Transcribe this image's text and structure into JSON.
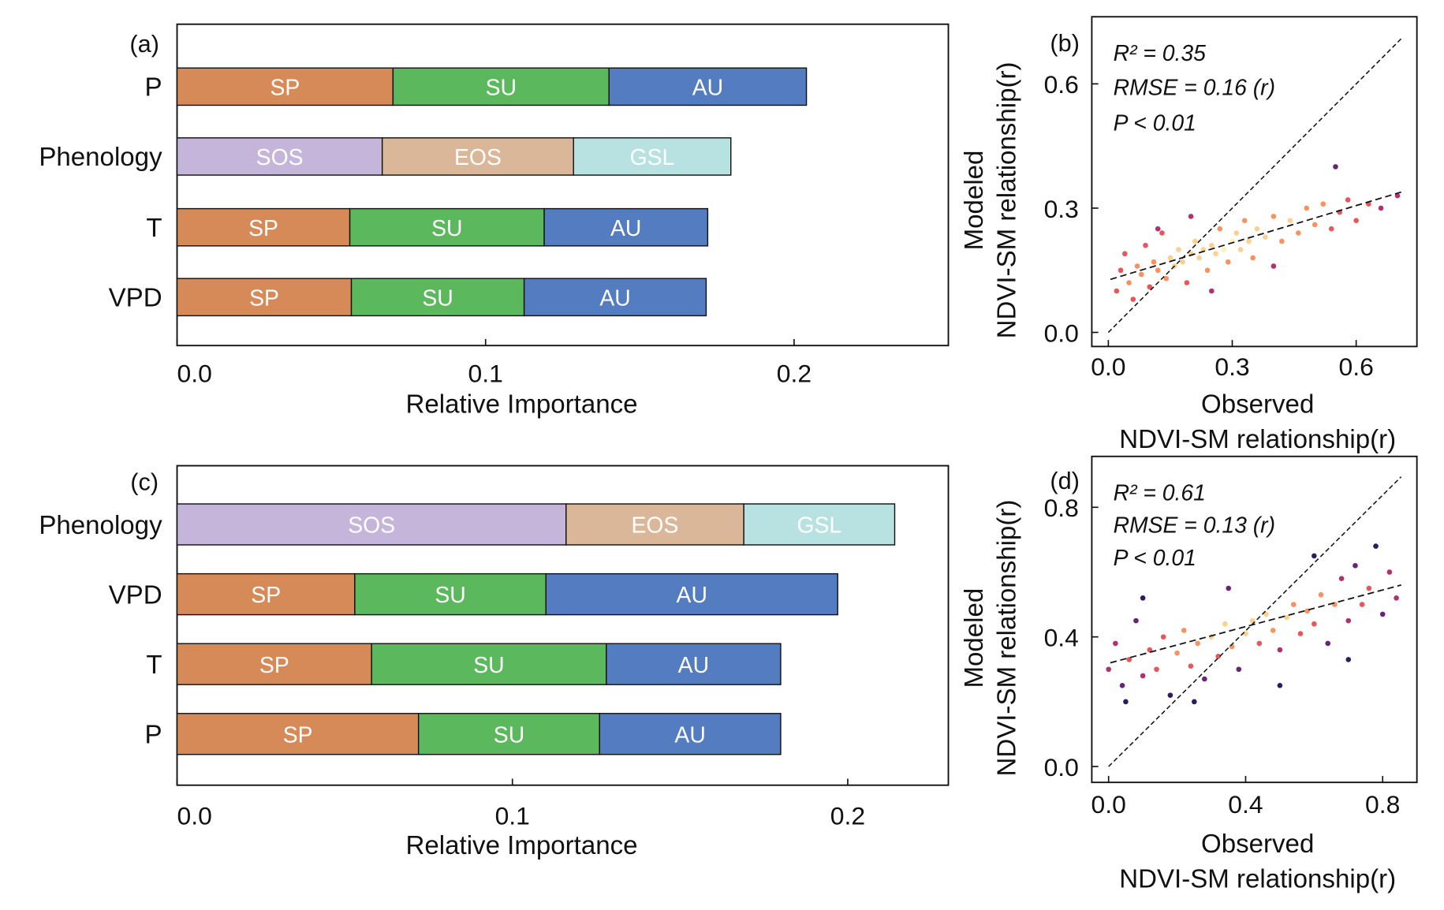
{
  "chart_data": [
    {
      "panel": "(a)",
      "type": "bar",
      "orientation": "horizontal",
      "stacked": true,
      "xlabel": "Relative Importance",
      "xlim": [
        0,
        0.25
      ],
      "xticks": [
        "0.0",
        "0.1",
        "0.2"
      ],
      "xtick_values": [
        0,
        0.1,
        0.2
      ],
      "categories": [
        "P",
        "Phenology",
        "T",
        "VPD"
      ],
      "bars": [
        {
          "category": "P",
          "segments": [
            {
              "label": "SP",
              "value": 0.07,
              "color": "#d68a58"
            },
            {
              "label": "SU",
              "value": 0.07,
              "color": "#5cb85c"
            },
            {
              "label": "AU",
              "value": 0.064,
              "color": "#537cc1"
            }
          ]
        },
        {
          "category": "Phenology",
          "segments": [
            {
              "label": "SOS",
              "value": 0.0665,
              "color": "#c5b5da"
            },
            {
              "label": "EOS",
              "value": 0.062,
              "color": "#dbb799"
            },
            {
              "label": "GSL",
              "value": 0.051,
              "color": "#b8e1e2"
            }
          ]
        },
        {
          "category": "T",
          "segments": [
            {
              "label": "SP",
              "value": 0.056,
              "color": "#d68a58"
            },
            {
              "label": "SU",
              "value": 0.063,
              "color": "#5cb85c"
            },
            {
              "label": "AU",
              "value": 0.053,
              "color": "#537cc1"
            }
          ]
        },
        {
          "category": "VPD",
          "segments": [
            {
              "label": "SP",
              "value": 0.0565,
              "color": "#d68a58"
            },
            {
              "label": "SU",
              "value": 0.056,
              "color": "#5cb85c"
            },
            {
              "label": "AU",
              "value": 0.059,
              "color": "#537cc1"
            }
          ]
        }
      ]
    },
    {
      "panel": "(b)",
      "type": "scatter",
      "xlabel": [
        "Observed",
        "NDVI-SM relationship(r)"
      ],
      "ylabel": [
        "Modeled",
        "NDVI-SM relationship(r)"
      ],
      "xlim": [
        -0.04,
        0.747
      ],
      "ylim": [
        -0.034,
        0.762
      ],
      "xticks": [
        "0.0",
        "0.3",
        "0.6"
      ],
      "xtick_values": [
        0,
        0.3,
        0.6
      ],
      "yticks": [
        "0.0",
        "0.3",
        "0.6"
      ],
      "ytick_values": [
        0,
        0.3,
        0.6
      ],
      "stats": {
        "r2": "R² = 0.35",
        "rmse": "RMSE = 0.16 (r)",
        "p": "P < 0.01"
      },
      "fit_line": {
        "x": [
          0.005,
          0.713
        ],
        "y": [
          0.128,
          0.34
        ]
      },
      "one_to_one_line": {
        "x": [
          0,
          0.71
        ],
        "y": [
          0,
          0.71
        ]
      },
      "points": [
        [
          0.02,
          0.1
        ],
        [
          0.03,
          0.15
        ],
        [
          0.04,
          0.19
        ],
        [
          0.05,
          0.12
        ],
        [
          0.06,
          0.08
        ],
        [
          0.07,
          0.16
        ],
        [
          0.08,
          0.14
        ],
        [
          0.09,
          0.21
        ],
        [
          0.1,
          0.11
        ],
        [
          0.11,
          0.17
        ],
        [
          0.12,
          0.15
        ],
        [
          0.13,
          0.24
        ],
        [
          0.14,
          0.13
        ],
        [
          0.15,
          0.18
        ],
        [
          0.16,
          0.16
        ],
        [
          0.17,
          0.2
        ],
        [
          0.18,
          0.17
        ],
        [
          0.19,
          0.12
        ],
        [
          0.2,
          0.19
        ],
        [
          0.21,
          0.22
        ],
        [
          0.22,
          0.18
        ],
        [
          0.23,
          0.2
        ],
        [
          0.24,
          0.15
        ],
        [
          0.25,
          0.21
        ],
        [
          0.26,
          0.19
        ],
        [
          0.27,
          0.25
        ],
        [
          0.28,
          0.2
        ],
        [
          0.29,
          0.17
        ],
        [
          0.3,
          0.22
        ],
        [
          0.31,
          0.24
        ],
        [
          0.32,
          0.2
        ],
        [
          0.33,
          0.27
        ],
        [
          0.34,
          0.22
        ],
        [
          0.35,
          0.18
        ],
        [
          0.36,
          0.25
        ],
        [
          0.38,
          0.23
        ],
        [
          0.4,
          0.28
        ],
        [
          0.42,
          0.22
        ],
        [
          0.44,
          0.27
        ],
        [
          0.46,
          0.24
        ],
        [
          0.48,
          0.3
        ],
        [
          0.5,
          0.26
        ],
        [
          0.52,
          0.31
        ],
        [
          0.54,
          0.25
        ],
        [
          0.56,
          0.29
        ],
        [
          0.58,
          0.32
        ],
        [
          0.6,
          0.27
        ],
        [
          0.63,
          0.31
        ],
        [
          0.66,
          0.3
        ],
        [
          0.7,
          0.33
        ],
        [
          0.12,
          0.25
        ],
        [
          0.25,
          0.1
        ],
        [
          0.4,
          0.16
        ],
        [
          0.2,
          0.28
        ],
        [
          0.55,
          0.4
        ]
      ]
    },
    {
      "panel": "(c)",
      "type": "bar",
      "orientation": "horizontal",
      "stacked": true,
      "xlabel": "Relative Importance",
      "xlim": [
        0,
        0.23
      ],
      "xticks": [
        "0.0",
        "0.1",
        "0.2"
      ],
      "xtick_values": [
        0,
        0.1,
        0.2
      ],
      "categories": [
        "Phenology",
        "VPD",
        "T",
        "P"
      ],
      "bars": [
        {
          "category": "Phenology",
          "segments": [
            {
              "label": "SOS",
              "value": 0.116,
              "color": "#c5b5da"
            },
            {
              "label": "EOS",
              "value": 0.053,
              "color": "#dbb799"
            },
            {
              "label": "GSL",
              "value": 0.045,
              "color": "#b8e1e2"
            }
          ]
        },
        {
          "category": "VPD",
          "segments": [
            {
              "label": "SP",
              "value": 0.053,
              "color": "#d68a58"
            },
            {
              "label": "SU",
              "value": 0.057,
              "color": "#5cb85c"
            },
            {
              "label": "AU",
              "value": 0.087,
              "color": "#537cc1"
            }
          ]
        },
        {
          "category": "T",
          "segments": [
            {
              "label": "SP",
              "value": 0.058,
              "color": "#d68a58"
            },
            {
              "label": "SU",
              "value": 0.07,
              "color": "#5cb85c"
            },
            {
              "label": "AU",
              "value": 0.052,
              "color": "#537cc1"
            }
          ]
        },
        {
          "category": "P",
          "segments": [
            {
              "label": "SP",
              "value": 0.072,
              "color": "#d68a58"
            },
            {
              "label": "SU",
              "value": 0.054,
              "color": "#5cb85c"
            },
            {
              "label": "AU",
              "value": 0.054,
              "color": "#537cc1"
            }
          ]
        }
      ]
    },
    {
      "panel": "(d)",
      "type": "scatter",
      "xlabel": [
        "Observed",
        "NDVI-SM relationship(r)"
      ],
      "ylabel": [
        "Modeled",
        "NDVI-SM relationship(r)"
      ],
      "xlim": [
        -0.049,
        0.9
      ],
      "ylim": [
        -0.049,
        0.957
      ],
      "xticks": [
        "0.0",
        "0.4",
        "0.8"
      ],
      "xtick_values": [
        0,
        0.4,
        0.8
      ],
      "yticks": [
        "0.0",
        "0.4",
        "0.8"
      ],
      "ytick_values": [
        0,
        0.4,
        0.8
      ],
      "stats": {
        "r2": "R² = 0.61",
        "rmse": "RMSE = 0.13 (r)",
        "p": "P < 0.01"
      },
      "fit_line": {
        "x": [
          0.005,
          0.854
        ],
        "y": [
          0.32,
          0.56
        ]
      },
      "one_to_one_line": {
        "x": [
          0,
          0.854
        ],
        "y": [
          0,
          0.894
        ]
      },
      "points": [
        [
          0.0,
          0.3
        ],
        [
          0.02,
          0.38
        ],
        [
          0.04,
          0.25
        ],
        [
          0.06,
          0.33
        ],
        [
          0.08,
          0.45
        ],
        [
          0.1,
          0.28
        ],
        [
          0.12,
          0.36
        ],
        [
          0.14,
          0.3
        ],
        [
          0.16,
          0.4
        ],
        [
          0.18,
          0.22
        ],
        [
          0.2,
          0.35
        ],
        [
          0.22,
          0.42
        ],
        [
          0.24,
          0.31
        ],
        [
          0.26,
          0.38
        ],
        [
          0.28,
          0.27
        ],
        [
          0.3,
          0.4
        ],
        [
          0.32,
          0.34
        ],
        [
          0.34,
          0.44
        ],
        [
          0.36,
          0.37
        ],
        [
          0.38,
          0.3
        ],
        [
          0.4,
          0.41
        ],
        [
          0.42,
          0.45
        ],
        [
          0.44,
          0.38
        ],
        [
          0.46,
          0.47
        ],
        [
          0.48,
          0.42
        ],
        [
          0.5,
          0.36
        ],
        [
          0.52,
          0.46
        ],
        [
          0.54,
          0.5
        ],
        [
          0.56,
          0.41
        ],
        [
          0.58,
          0.48
        ],
        [
          0.6,
          0.44
        ],
        [
          0.62,
          0.53
        ],
        [
          0.64,
          0.38
        ],
        [
          0.66,
          0.5
        ],
        [
          0.68,
          0.58
        ],
        [
          0.7,
          0.45
        ],
        [
          0.72,
          0.62
        ],
        [
          0.74,
          0.5
        ],
        [
          0.76,
          0.55
        ],
        [
          0.78,
          0.68
        ],
        [
          0.8,
          0.47
        ],
        [
          0.82,
          0.6
        ],
        [
          0.84,
          0.52
        ],
        [
          0.1,
          0.52
        ],
        [
          0.25,
          0.2
        ],
        [
          0.5,
          0.25
        ],
        [
          0.7,
          0.33
        ],
        [
          0.6,
          0.65
        ],
        [
          0.35,
          0.55
        ],
        [
          0.05,
          0.2
        ]
      ]
    }
  ]
}
